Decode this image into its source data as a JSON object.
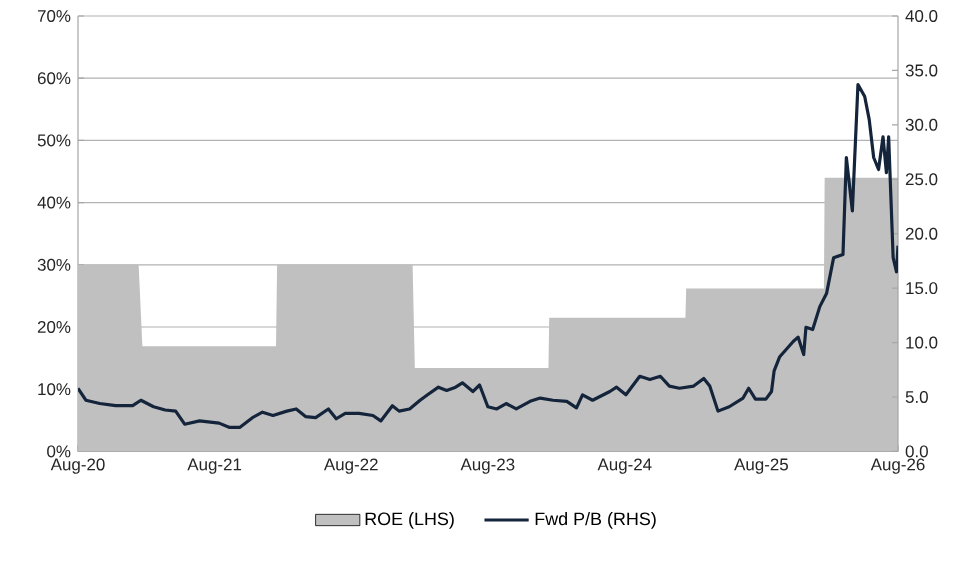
{
  "chart_data": {
    "type": "area",
    "xlim": [
      "2020-08-01",
      "2026-08-01"
    ],
    "xticks": [
      {
        "value": "2020-08-01",
        "label": "Aug-20"
      },
      {
        "value": "2021-08-01",
        "label": "Aug-21"
      },
      {
        "value": "2022-08-01",
        "label": "Aug-22"
      },
      {
        "value": "2023-08-01",
        "label": "Aug-23"
      },
      {
        "value": "2024-08-01",
        "label": "Aug-24"
      },
      {
        "value": "2025-08-01",
        "label": "Aug-25"
      },
      {
        "value": "2026-08-01",
        "label": "Aug-26"
      }
    ],
    "ylim": [
      0,
      70
    ],
    "yticks": [
      {
        "value": 0,
        "label": "0%"
      },
      {
        "value": 10,
        "label": "10%"
      },
      {
        "value": 20,
        "label": "20%"
      },
      {
        "value": 30,
        "label": "30%"
      },
      {
        "value": 40,
        "label": "40%"
      },
      {
        "value": 50,
        "label": "50%"
      },
      {
        "value": 60,
        "label": "60%"
      },
      {
        "value": 70,
        "label": "70%"
      }
    ],
    "y2lim": [
      0,
      40
    ],
    "y2ticks": [
      {
        "value": 0,
        "label": "0.0"
      },
      {
        "value": 5,
        "label": "5.0"
      },
      {
        "value": 10,
        "label": "10.0"
      },
      {
        "value": 15,
        "label": "15.0"
      },
      {
        "value": 20,
        "label": "20.0"
      },
      {
        "value": 25,
        "label": "25.0"
      },
      {
        "value": 30,
        "label": "30.0"
      },
      {
        "value": 35,
        "label": "35.0"
      },
      {
        "value": 40,
        "label": "40.0"
      }
    ],
    "grid": "y",
    "legend": "bottom",
    "series": [
      {
        "name": "ROE (LHS)",
        "color": "#c0c0c0",
        "x": [
          "2020-08-01",
          "2021-01-10",
          "2021-01-20",
          "2022-01-12",
          "2022-01-15",
          "2023-01-12",
          "2023-01-18",
          "2024-01-10",
          "2024-01-12",
          "2025-01-10",
          "2025-01-12",
          "2026-01-15",
          "2026-01-17",
          "2026-08-01"
        ],
        "values": [
          30,
          30,
          16.9,
          16.9,
          30,
          30,
          13.4,
          13.4,
          21.5,
          21.5,
          26.2,
          26.2,
          44,
          44
        ]
      },
      {
        "name": "Fwd P/B (RHS)",
        "type": "line",
        "axis": "y2",
        "color": "#14243a",
        "x": [
          "2020-08-01",
          "2020-08-22",
          "2020-09-28",
          "2020-11-10",
          "2020-12-25",
          "2021-01-16",
          "2021-02-19",
          "2021-03-22",
          "2021-04-19",
          "2021-05-13",
          "2021-06-22",
          "2021-08-13",
          "2021-09-10",
          "2021-10-07",
          "2021-11-10",
          "2021-12-07",
          "2022-01-04",
          "2022-02-10",
          "2022-03-07",
          "2022-04-01",
          "2022-04-28",
          "2022-06-01",
          "2022-06-22",
          "2022-07-16",
          "2022-08-22",
          "2022-09-28",
          "2022-10-19",
          "2022-11-19",
          "2022-12-07",
          "2023-01-04",
          "2023-02-01",
          "2023-02-21",
          "2023-03-22",
          "2023-04-13",
          "2023-05-07",
          "2023-05-25",
          "2023-06-22",
          "2023-07-10",
          "2023-08-01",
          "2023-08-25",
          "2023-09-19",
          "2023-10-16",
          "2023-11-22",
          "2023-12-19",
          "2024-01-22",
          "2024-02-28",
          "2024-03-25",
          "2024-04-10",
          "2024-05-07",
          "2024-06-22",
          "2024-07-10",
          "2024-08-04",
          "2024-09-10",
          "2024-10-07",
          "2024-11-04",
          "2024-11-28",
          "2024-12-25",
          "2025-02-01",
          "2025-02-28",
          "2025-03-16",
          "2025-04-07",
          "2025-05-07",
          "2025-06-13",
          "2025-06-28",
          "2025-07-16",
          "2025-08-13",
          "2025-08-28",
          "2025-09-04",
          "2025-09-19",
          "2025-10-25",
          "2025-11-07",
          "2025-11-22",
          "2025-11-28",
          "2025-12-16",
          "2026-01-04",
          "2026-01-22",
          "2026-02-10",
          "2026-03-07",
          "2026-03-16",
          "2026-04-01",
          "2026-04-16",
          "2026-05-04",
          "2026-05-16",
          "2026-05-28",
          "2026-06-10",
          "2026-06-22",
          "2026-07-01",
          "2026-07-07",
          "2026-07-19",
          "2026-07-28",
          "2026-08-01"
        ],
        "values": [
          5.8,
          4.7,
          4.4,
          4.2,
          4.2,
          4.7,
          4.1,
          3.8,
          3.7,
          2.5,
          2.8,
          2.6,
          2.2,
          2.2,
          3.1,
          3.6,
          3.3,
          3.7,
          3.9,
          3.2,
          3.1,
          3.9,
          3.0,
          3.5,
          3.5,
          3.3,
          2.8,
          4.2,
          3.7,
          3.9,
          4.7,
          5.2,
          5.9,
          5.6,
          5.9,
          6.3,
          5.5,
          6.1,
          4.1,
          3.9,
          4.4,
          3.9,
          4.6,
          4.9,
          4.7,
          4.6,
          4.0,
          5.2,
          4.7,
          5.5,
          5.9,
          5.2,
          6.9,
          6.6,
          6.9,
          6.0,
          5.8,
          6.0,
          6.7,
          6.0,
          3.7,
          4.1,
          4.9,
          5.8,
          4.8,
          4.8,
          5.5,
          7.4,
          8.7,
          10.1,
          10.5,
          8.9,
          11.4,
          11.2,
          13.3,
          14.5,
          17.8,
          18.1,
          27.0,
          22.1,
          33.7,
          32.6,
          30.5,
          27.0,
          25.9,
          28.9,
          25.6,
          28.9,
          17.8,
          16.5,
          18.9
        ]
      }
    ]
  }
}
